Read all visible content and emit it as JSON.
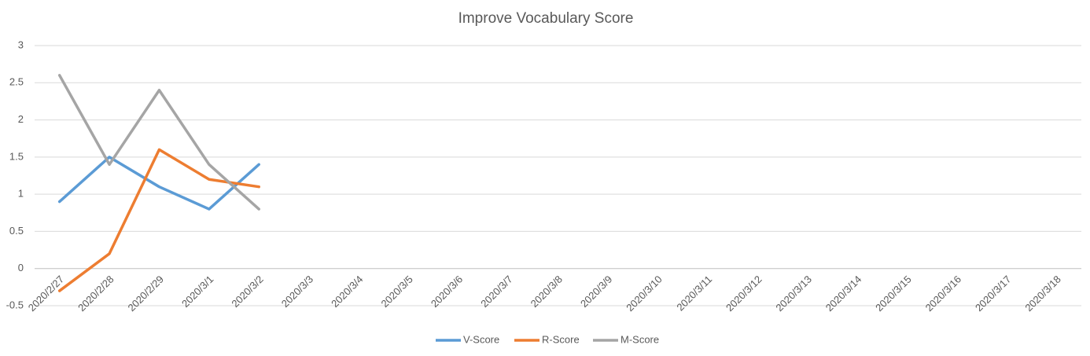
{
  "chart_data": {
    "type": "line",
    "title": "Improve Vocabulary Score",
    "categories": [
      "2020/2/27",
      "2020/2/28",
      "2020/2/29",
      "2020/3/1",
      "2020/3/2",
      "2020/3/3",
      "2020/3/4",
      "2020/3/5",
      "2020/3/6",
      "2020/3/7",
      "2020/3/8",
      "2020/3/9",
      "2020/3/10",
      "2020/3/11",
      "2020/3/12",
      "2020/3/13",
      "2020/3/14",
      "2020/3/15",
      "2020/3/16",
      "2020/3/17",
      "2020/3/18"
    ],
    "series": [
      {
        "name": "V-Score",
        "color": "#5b9bd5",
        "values": [
          0.9,
          1.5,
          1.1,
          0.8,
          1.4,
          null,
          null,
          null,
          null,
          null,
          null,
          null,
          null,
          null,
          null,
          null,
          null,
          null,
          null,
          null,
          null
        ]
      },
      {
        "name": "R-Score",
        "color": "#ed7d31",
        "values": [
          -0.3,
          0.2,
          1.6,
          1.2,
          1.1,
          null,
          null,
          null,
          null,
          null,
          null,
          null,
          null,
          null,
          null,
          null,
          null,
          null,
          null,
          null,
          null
        ]
      },
      {
        "name": "M-Score",
        "color": "#a5a5a5",
        "values": [
          2.6,
          1.4,
          2.4,
          1.4,
          0.8,
          null,
          null,
          null,
          null,
          null,
          null,
          null,
          null,
          null,
          null,
          null,
          null,
          null,
          null,
          null,
          null
        ]
      }
    ],
    "ylim": [
      -0.5,
      3
    ],
    "yticks": [
      -0.5,
      0,
      0.5,
      1,
      1.5,
      2,
      2.5,
      3
    ],
    "grid": true,
    "legend": "bottom"
  }
}
